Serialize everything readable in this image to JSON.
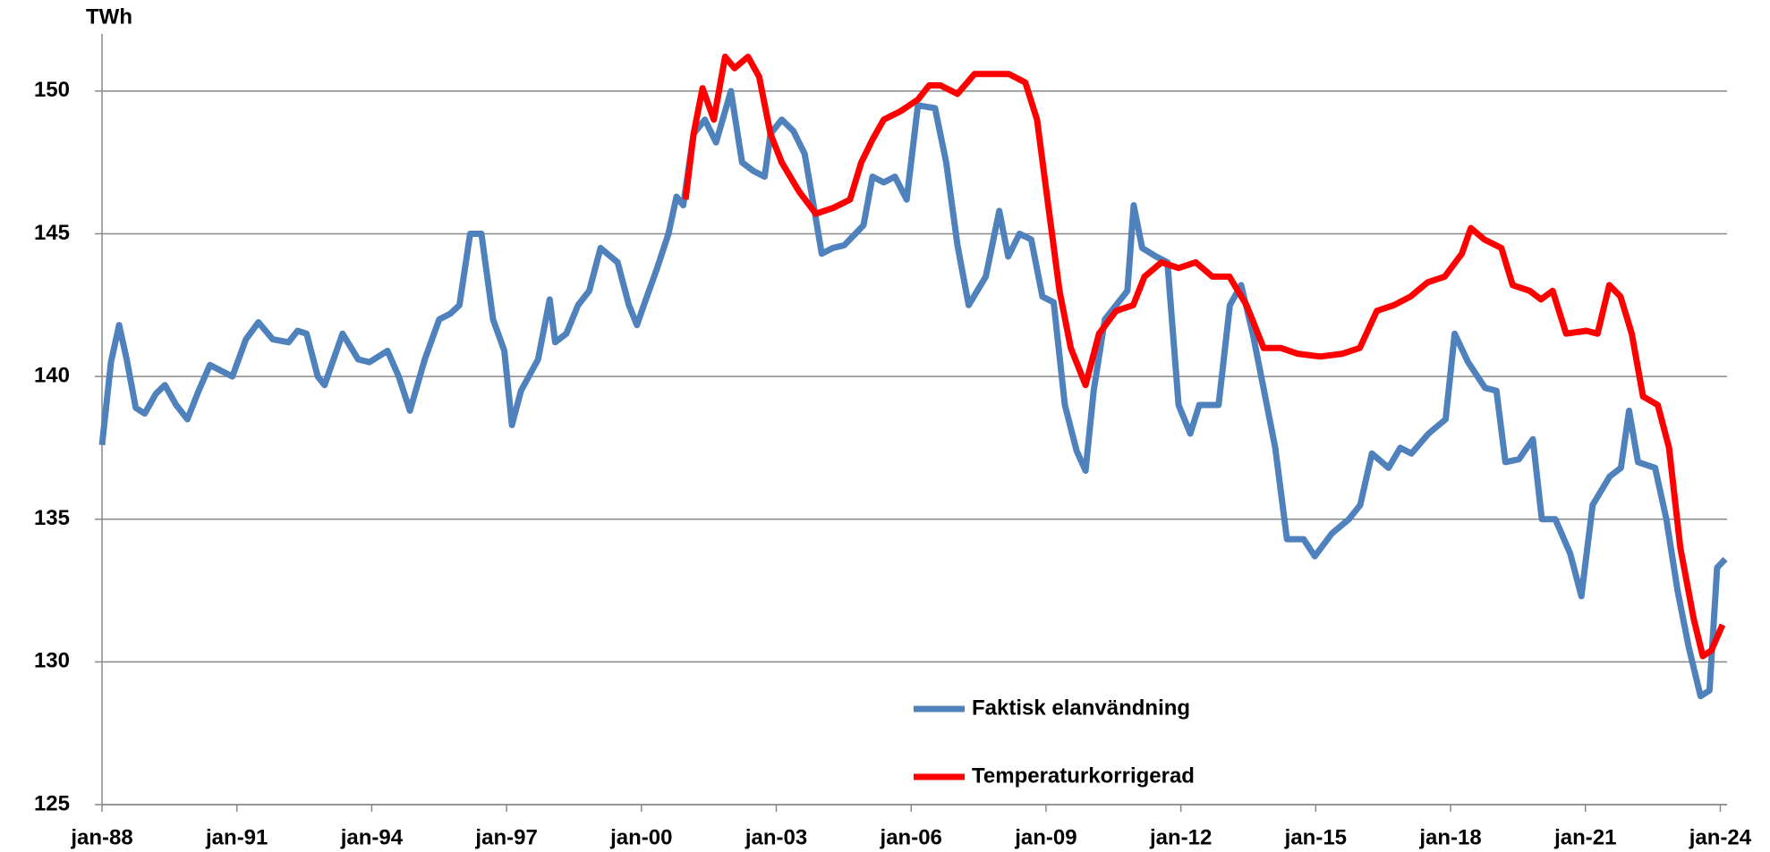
{
  "chart_data": {
    "type": "line",
    "y_label": "TWh",
    "xlim": [
      1988,
      2024.15
    ],
    "ylim": [
      125,
      152
    ],
    "xticks": [
      {
        "value": 1988,
        "label": "jan-88"
      },
      {
        "value": 1991,
        "label": "jan-91"
      },
      {
        "value": 1994,
        "label": "jan-94"
      },
      {
        "value": 1997,
        "label": "jan-97"
      },
      {
        "value": 2000,
        "label": "jan-00"
      },
      {
        "value": 2003,
        "label": "jan-03"
      },
      {
        "value": 2006,
        "label": "jan-06"
      },
      {
        "value": 2009,
        "label": "jan-09"
      },
      {
        "value": 2012,
        "label": "jan-12"
      },
      {
        "value": 2015,
        "label": "jan-15"
      },
      {
        "value": 2018,
        "label": "jan-18"
      },
      {
        "value": 2021,
        "label": "jan-21"
      },
      {
        "value": 2024,
        "label": "jan-24"
      }
    ],
    "yticks": [
      125,
      130,
      135,
      140,
      145,
      150
    ],
    "grid": true,
    "legend": "bottom",
    "series": [
      {
        "name": "Faktisk elanvändning",
        "color": "#4f81bd",
        "x": [
          1988.0,
          1988.2,
          1988.38,
          1988.55,
          1988.75,
          1988.95,
          1989.2,
          1989.4,
          1989.65,
          1989.9,
          1990.15,
          1990.4,
          1990.65,
          1990.9,
          1991.2,
          1991.48,
          1991.8,
          1992.15,
          1992.35,
          1992.55,
          1992.8,
          1992.95,
          1993.35,
          1993.7,
          1993.95,
          1994.35,
          1994.6,
          1994.85,
          1995.18,
          1995.5,
          1995.75,
          1995.95,
          1996.19,
          1996.44,
          1996.7,
          1996.95,
          1997.12,
          1997.32,
          1997.7,
          1997.96,
          1998.08,
          1998.33,
          1998.59,
          1998.84,
          1999.09,
          1999.47,
          1999.72,
          1999.9,
          2000.1,
          2000.35,
          2000.6,
          2000.78,
          2000.93,
          2001.16,
          2001.41,
          2001.66,
          2001.99,
          2002.24,
          2002.49,
          2002.74,
          2002.87,
          2003.12,
          2003.38,
          2003.63,
          2003.83,
          2004.01,
          2004.26,
          2004.51,
          2004.76,
          2004.94,
          2005.14,
          2005.39,
          2005.64,
          2005.9,
          2006.15,
          2006.53,
          2006.78,
          2007.03,
          2007.28,
          2007.66,
          2007.96,
          2008.16,
          2008.41,
          2008.67,
          2008.92,
          2009.17,
          2009.42,
          2009.68,
          2009.88,
          2010.06,
          2010.31,
          2010.56,
          2010.81,
          2010.95,
          2011.14,
          2011.45,
          2011.7,
          2011.95,
          2012.21,
          2012.41,
          2012.84,
          2013.09,
          2013.34,
          2013.6,
          2013.85,
          2014.1,
          2014.36,
          2014.73,
          2014.98,
          2015.36,
          2015.74,
          2015.99,
          2016.25,
          2016.62,
          2016.88,
          2017.13,
          2017.51,
          2017.89,
          2018.09,
          2018.39,
          2018.77,
          2019.02,
          2019.22,
          2019.52,
          2019.83,
          2020.03,
          2020.33,
          2020.66,
          2020.91,
          2021.16,
          2021.54,
          2021.79,
          2021.97,
          2022.17,
          2022.55,
          2022.8,
          2023.05,
          2023.3,
          2023.56,
          2023.76,
          2023.93,
          2024.11
        ],
        "values": [
          137.6,
          140.5,
          141.8,
          140.6,
          138.9,
          138.7,
          139.4,
          139.7,
          139,
          138.5,
          139.5,
          140.4,
          140.2,
          140,
          141.3,
          141.9,
          141.3,
          141.2,
          141.6,
          141.5,
          140,
          139.7,
          141.5,
          140.6,
          140.5,
          140.9,
          140,
          138.8,
          140.6,
          142,
          142.2,
          142.5,
          145,
          145,
          142,
          140.9,
          138.3,
          139.5,
          140.6,
          142.7,
          141.2,
          141.5,
          142.5,
          143,
          144.5,
          144,
          142.5,
          141.8,
          142.7,
          143.8,
          145,
          146.3,
          146,
          148.5,
          149,
          148.2,
          150,
          147.5,
          147.2,
          147,
          148.5,
          149,
          148.6,
          147.8,
          146,
          144.3,
          144.5,
          144.6,
          145,
          145.3,
          147,
          146.8,
          147,
          146.2,
          149.5,
          149.4,
          147.5,
          144.6,
          142.5,
          143.5,
          145.8,
          144.2,
          145,
          144.8,
          142.8,
          142.6,
          139,
          137.4,
          136.7,
          139.5,
          142,
          142.5,
          143,
          146,
          144.5,
          144.2,
          144,
          139,
          138,
          139,
          139,
          142.5,
          143.2,
          141.5,
          139.5,
          137.5,
          134.3,
          134.3,
          133.7,
          134.5,
          135,
          135.5,
          137.3,
          136.8,
          137.5,
          137.3,
          138,
          138.5,
          141.5,
          140.5,
          139.6,
          139.5,
          137,
          137.1,
          137.8,
          135,
          135,
          133.8,
          132.3,
          135.5,
          136.5,
          136.8,
          138.8,
          137,
          136.8,
          135,
          132.5,
          130.5,
          128.8,
          129,
          133.3,
          133.6
        ]
      },
      {
        "name": "Temperaturkorrigerad",
        "color": "#ff0000",
        "x": [
          2000.98,
          2001.16,
          2001.36,
          2001.61,
          2001.86,
          2002.07,
          2002.37,
          2002.62,
          2002.87,
          2003.12,
          2003.5,
          2003.88,
          2004.26,
          2004.64,
          2004.89,
          2005.14,
          2005.39,
          2005.77,
          2006.15,
          2006.4,
          2006.65,
          2007.03,
          2007.41,
          2007.79,
          2008.17,
          2008.54,
          2008.8,
          2009.05,
          2009.3,
          2009.55,
          2009.88,
          2010.18,
          2010.56,
          2010.94,
          2011.19,
          2011.57,
          2011.95,
          2012.33,
          2012.7,
          2013.08,
          2013.46,
          2013.84,
          2014.22,
          2014.59,
          2015.1,
          2015.6,
          2015.98,
          2016.36,
          2016.74,
          2017.11,
          2017.49,
          2017.87,
          2018.25,
          2018.45,
          2018.75,
          2019.13,
          2019.38,
          2019.76,
          2020.01,
          2020.27,
          2020.57,
          2021.02,
          2021.27,
          2021.53,
          2021.78,
          2022.03,
          2022.28,
          2022.61,
          2022.86,
          2023.11,
          2023.41,
          2023.61,
          2023.8,
          2024.05
        ],
        "values": [
          146.2,
          148.5,
          150.1,
          149,
          151.2,
          150.8,
          151.2,
          150.5,
          148.5,
          147.5,
          146.5,
          145.7,
          145.9,
          146.2,
          147.5,
          148.3,
          149,
          149.3,
          149.7,
          150.2,
          150.2,
          149.9,
          150.6,
          150.6,
          150.6,
          150.3,
          149,
          146,
          143,
          141,
          139.7,
          141.5,
          142.3,
          142.5,
          143.5,
          144,
          143.8,
          144,
          143.5,
          143.5,
          142.5,
          141,
          141,
          140.8,
          140.7,
          140.8,
          141,
          142.3,
          142.5,
          142.8,
          143.3,
          143.5,
          144.3,
          145.2,
          144.8,
          144.5,
          143.2,
          143,
          142.7,
          143,
          141.5,
          141.6,
          141.5,
          143.2,
          142.8,
          141.5,
          139.3,
          139,
          137.5,
          134,
          131.5,
          130.2,
          130.4,
          131.3
        ]
      }
    ]
  }
}
